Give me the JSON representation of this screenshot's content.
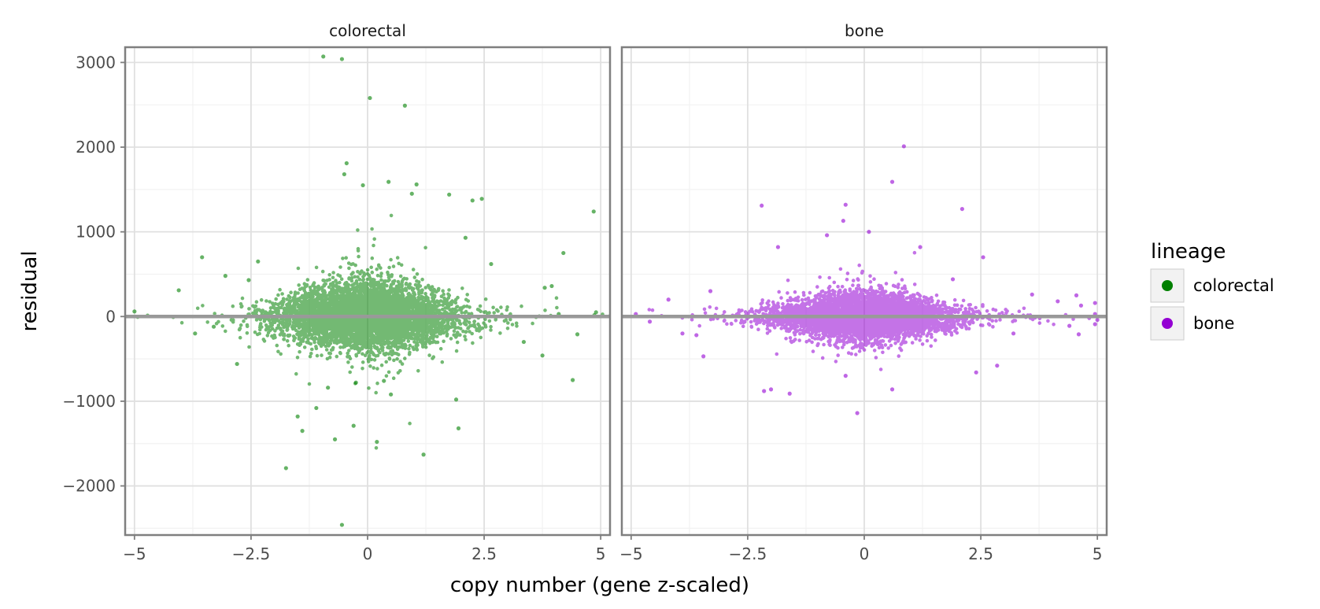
{
  "chart_data": {
    "type": "scatter",
    "xlabel": "copy number (gene z-scaled)",
    "ylabel": "residual",
    "xlim": [
      -5.2,
      5.2
    ],
    "ylim": [
      -2580,
      3180
    ],
    "x_ticks": [
      -5,
      -2.5,
      0,
      2.5,
      5
    ],
    "x_tick_labels": [
      "−5",
      "−2.5",
      "0",
      "2.5",
      "5"
    ],
    "y_ticks": [
      -2000,
      -1000,
      0,
      1000,
      2000,
      3000
    ],
    "y_tick_labels": [
      "−2000",
      "−1000",
      "0",
      "1000",
      "2000",
      "3000"
    ],
    "reference_line": {
      "y": 0,
      "color": "#999999"
    },
    "grid": true,
    "legend": {
      "title": "lineage",
      "position": "right",
      "entries": [
        {
          "label": "colorectal",
          "color": "#008000"
        },
        {
          "label": "bone",
          "color": "#9400D3"
        }
      ]
    },
    "panels": [
      {
        "label": "colorectal",
        "color": "#008000",
        "outliers": [
          [
            -0.95,
            3070
          ],
          [
            -0.55,
            3040
          ],
          [
            0.05,
            2580
          ],
          [
            0.8,
            2490
          ],
          [
            -0.45,
            1810
          ],
          [
            -0.5,
            1680
          ],
          [
            -0.1,
            1550
          ],
          [
            0.45,
            1590
          ],
          [
            0.95,
            1450
          ],
          [
            1.05,
            1560
          ],
          [
            1.75,
            1440
          ],
          [
            2.25,
            1370
          ],
          [
            2.45,
            1390
          ],
          [
            4.85,
            1240
          ],
          [
            4.2,
            750
          ],
          [
            3.8,
            340
          ],
          [
            3.95,
            360
          ],
          [
            -4.05,
            310
          ],
          [
            -5.0,
            60
          ],
          [
            -3.55,
            700
          ],
          [
            -3.05,
            480
          ],
          [
            -2.35,
            650
          ],
          [
            -2.55,
            430
          ],
          [
            -3.3,
            -120
          ],
          [
            -3.7,
            -200
          ],
          [
            -2.8,
            -560
          ],
          [
            3.75,
            -460
          ],
          [
            4.4,
            -750
          ],
          [
            3.35,
            -300
          ],
          [
            4.1,
            30
          ],
          [
            4.5,
            -210
          ],
          [
            -1.5,
            -1180
          ],
          [
            -1.75,
            -1790
          ],
          [
            -1.4,
            -1350
          ],
          [
            -0.7,
            -1450
          ],
          [
            -0.3,
            -1290
          ],
          [
            -0.55,
            -2460
          ],
          [
            0.2,
            -1480
          ],
          [
            1.2,
            -1630
          ],
          [
            1.95,
            -1320
          ],
          [
            1.9,
            -980
          ],
          [
            0.5,
            -920
          ],
          [
            -1.1,
            -1080
          ],
          [
            4.9,
            50
          ],
          [
            -0.25,
            -780
          ],
          [
            0.35,
            -760
          ],
          [
            -0.85,
            -840
          ],
          [
            2.1,
            930
          ],
          [
            2.65,
            620
          ]
        ],
        "cloud": {
          "n": 5200,
          "sd_x": 0.9,
          "sd_y": 210,
          "y_scale_factor": 1.0,
          "seed": 11
        }
      },
      {
        "label": "bone",
        "color": "#9400D3",
        "outliers": [
          [
            0.85,
            2010
          ],
          [
            0.6,
            1590
          ],
          [
            -2.2,
            1310
          ],
          [
            -0.4,
            1320
          ],
          [
            2.1,
            1270
          ],
          [
            -0.45,
            1130
          ],
          [
            -0.8,
            960
          ],
          [
            0.1,
            1000
          ],
          [
            1.2,
            820
          ],
          [
            2.55,
            700
          ],
          [
            -1.85,
            820
          ],
          [
            -4.6,
            -60
          ],
          [
            -4.2,
            200
          ],
          [
            -3.9,
            -200
          ],
          [
            -3.6,
            -220
          ],
          [
            -3.3,
            300
          ],
          [
            -3.45,
            -470
          ],
          [
            3.6,
            260
          ],
          [
            4.15,
            180
          ],
          [
            4.55,
            250
          ],
          [
            4.65,
            130
          ],
          [
            4.95,
            160
          ],
          [
            4.95,
            30
          ],
          [
            5.0,
            -40
          ],
          [
            4.95,
            -90
          ],
          [
            4.4,
            -110
          ],
          [
            4.6,
            -210
          ],
          [
            -2.15,
            -880
          ],
          [
            -1.6,
            -910
          ],
          [
            -0.15,
            -1140
          ],
          [
            0.6,
            -860
          ],
          [
            2.4,
            -660
          ],
          [
            -0.4,
            -700
          ],
          [
            -2.0,
            -860
          ],
          [
            2.85,
            -580
          ],
          [
            -4.9,
            30
          ],
          [
            1.9,
            440
          ],
          [
            3.2,
            -200
          ]
        ],
        "cloud": {
          "n": 5200,
          "sd_x": 0.9,
          "sd_y": 135,
          "y_scale_factor": 1.0,
          "seed": 29
        }
      }
    ]
  }
}
